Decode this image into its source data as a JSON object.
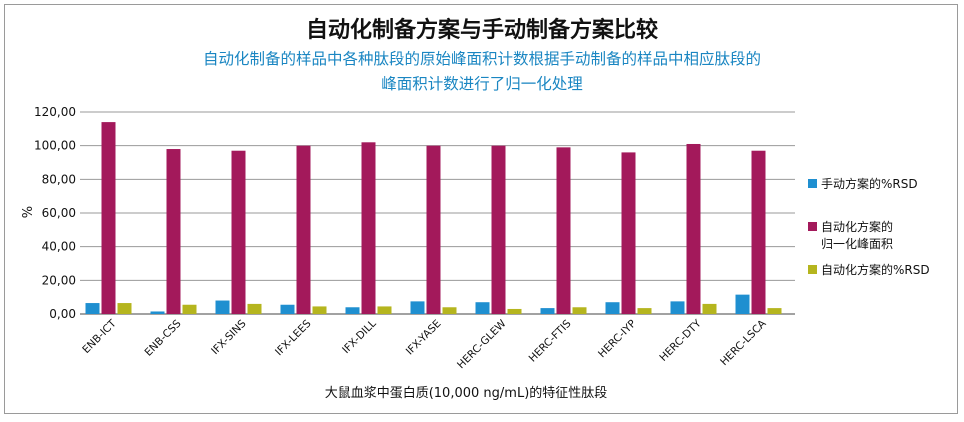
{
  "chart_data": {
    "type": "bar",
    "title": "自动化制备方案与手动制备方案比较",
    "subtitle": [
      "自动化制备的样品中各种肽段的原始峰面积计数根据手动制备的样品中相应肽段的",
      "峰面积计数进行了归一化处理"
    ],
    "xlabel": "大鼠血浆中蛋白质(10,000 ng/mL)的特征性肽段",
    "ylabel": "%",
    "ylim": [
      0,
      120
    ],
    "yticks": [
      "0,00",
      "20,00",
      "40,00",
      "60,00",
      "80,00",
      "100,00",
      "120,00"
    ],
    "ytick_values": [
      0,
      20,
      40,
      60,
      80,
      100,
      120
    ],
    "grid": true,
    "legend_position": "right",
    "categories": [
      "ENB-ICT",
      "ENB-CSS",
      "IFX-SINS",
      "IFX-LEES",
      "IFX-DILL",
      "IFX-YASE",
      "HERC-GLEW",
      "HERC-FTIS",
      "HERC-IYP",
      "HERC-DTY",
      "HERC-LSCA"
    ],
    "series": [
      {
        "name": "手动方案的%RSD",
        "color": "#1f8fd0",
        "values": [
          6.5,
          1.5,
          8,
          5.5,
          4,
          7.5,
          7,
          3.5,
          7,
          7.5,
          11.5
        ]
      },
      {
        "name": "自动化方案的\n归一化峰面积",
        "name_lines": [
          "自动化方案的",
          "归一化峰面积"
        ],
        "color": "#a3195b",
        "values": [
          114,
          98,
          97,
          100,
          102,
          100,
          100,
          99,
          96,
          101,
          97
        ]
      },
      {
        "name": "自动化方案的%RSD",
        "color": "#b5b51e",
        "values": [
          6.5,
          5.5,
          6,
          4.5,
          4.5,
          4,
          3,
          4,
          3.5,
          6,
          3.5
        ]
      }
    ]
  }
}
